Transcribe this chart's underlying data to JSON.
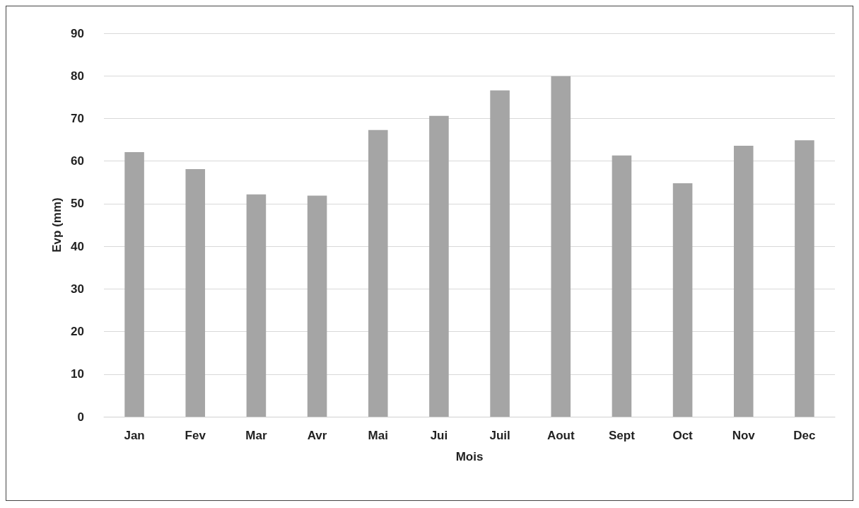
{
  "chart_data": {
    "type": "bar",
    "xlabel": "Mois",
    "ylabel": "Evp (mm)",
    "categories": [
      "Jan",
      "Fev",
      "Mar",
      "Avr",
      "Mai",
      "Jui",
      "Juil",
      "Aout",
      "Sept",
      "Oct",
      "Nov",
      "Dec"
    ],
    "values": [
      62.1,
      58.1,
      52.2,
      51.9,
      67.3,
      70.6,
      76.6,
      79.9,
      61.3,
      54.8,
      63.6,
      64.9
    ],
    "color": "#a5a5a5",
    "ylim": [
      0,
      90
    ],
    "yticks": [
      0,
      10,
      20,
      30,
      40,
      50,
      60,
      70,
      80,
      90
    ],
    "grid": "y"
  }
}
